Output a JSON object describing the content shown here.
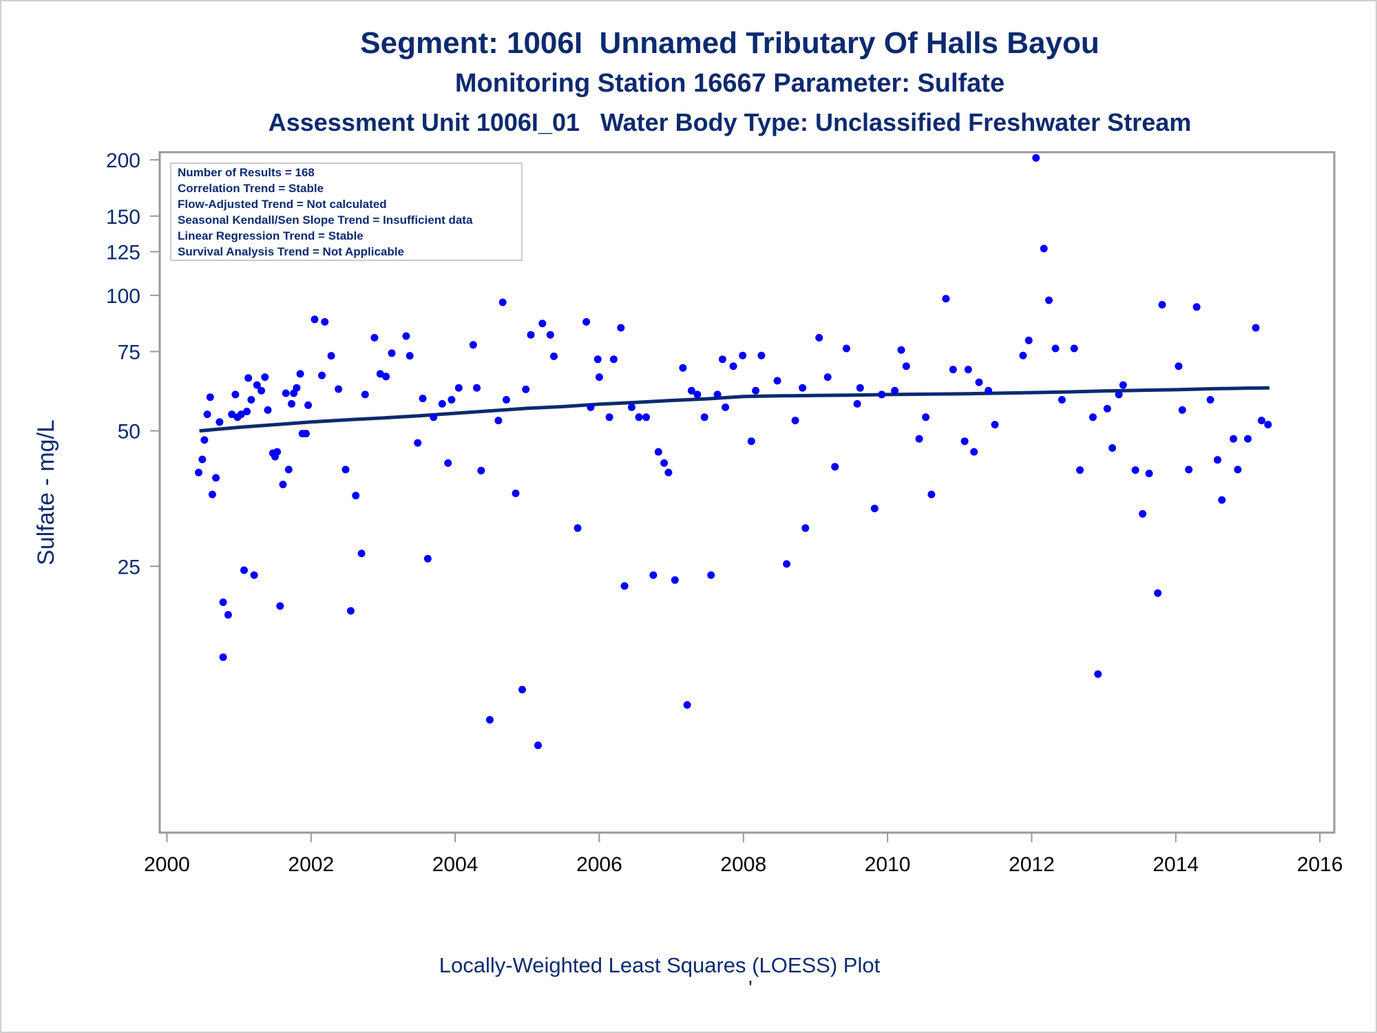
{
  "titles": {
    "line1": "Segment: 1006I  Unnamed Tributary Of Halls Bayou",
    "line2": "Monitoring Station 16667 Parameter: Sulfate",
    "line3": "Assessment Unit 1006I_01   Water Body Type: Unclassified Freshwater Stream"
  },
  "info_box": [
    "Number of Results = 168",
    "Correlation Trend = Stable",
    "Flow-Adjusted Trend = Not calculated",
    "Seasonal Kendall/Sen Slope Trend = Insufficient data",
    "Linear Regression Trend = Stable",
    "Survival Analysis Trend = Not Applicable"
  ],
  "caption": "Locally-Weighted Least Squares (LOESS) Plot",
  "caption_mark": "'",
  "colors": {
    "text": "#0b2a6f",
    "points": "#0000ff",
    "trend_line": "#0b2a6f",
    "frame": "#999999"
  },
  "chart_data": {
    "type": "scatter",
    "ylabel": "Sulfate - mg/L",
    "xlabel": "",
    "x_ticks": [
      2000,
      2002,
      2004,
      2006,
      2008,
      2010,
      2012,
      2014,
      2016
    ],
    "y_ticks": [
      25,
      50,
      75,
      100,
      125,
      150,
      200
    ],
    "y_scale": "log",
    "xlim": [
      1999.9,
      2016.2
    ],
    "ylim": [
      6.4,
      208
    ],
    "grid": false,
    "series": [
      {
        "type": "scatter",
        "points": [
          [
            2000.44,
            40.4
          ],
          [
            2000.49,
            43.2
          ],
          [
            2000.52,
            47.7
          ],
          [
            2000.56,
            54.4
          ],
          [
            2000.6,
            59.4
          ],
          [
            2000.63,
            36.1
          ],
          [
            2000.68,
            39.3
          ],
          [
            2000.73,
            52.3
          ],
          [
            2000.78,
            20.8
          ],
          [
            2000.78,
            15.7
          ],
          [
            2000.85,
            19.5
          ],
          [
            2000.9,
            54.4
          ],
          [
            2000.95,
            60.2
          ],
          [
            2000.98,
            53.6
          ],
          [
            2001.03,
            54.4
          ],
          [
            2001.07,
            24.5
          ],
          [
            2001.11,
            55.2
          ],
          [
            2001.13,
            65.5
          ],
          [
            2001.17,
            58.6
          ],
          [
            2001.21,
            23.9
          ],
          [
            2001.25,
            63.2
          ],
          [
            2001.31,
            61.4
          ],
          [
            2001.36,
            65.8
          ],
          [
            2001.4,
            55.6
          ],
          [
            2001.47,
            44.6
          ],
          [
            2001.5,
            43.8
          ],
          [
            2001.53,
            44.9
          ],
          [
            2001.57,
            20.4
          ],
          [
            2001.61,
            38.0
          ],
          [
            2001.65,
            60.6
          ],
          [
            2001.69,
            41.0
          ],
          [
            2001.73,
            57.4
          ],
          [
            2001.76,
            60.6
          ],
          [
            2001.8,
            62.3
          ],
          [
            2001.85,
            66.9
          ],
          [
            2001.88,
            49.3
          ],
          [
            2001.93,
            49.3
          ],
          [
            2001.96,
            57.0
          ],
          [
            2002.05,
            88.4
          ],
          [
            2002.15,
            66.4
          ],
          [
            2002.19,
            87.3
          ],
          [
            2002.28,
            73.4
          ],
          [
            2002.38,
            61.9
          ],
          [
            2002.48,
            41.0
          ],
          [
            2002.55,
            19.9
          ],
          [
            2002.62,
            35.9
          ],
          [
            2002.7,
            26.7
          ],
          [
            2002.75,
            60.2
          ],
          [
            2002.88,
            80.5
          ],
          [
            2002.96,
            66.9
          ],
          [
            2003.04,
            66.0
          ],
          [
            2003.12,
            74.4
          ],
          [
            2003.32,
            81.2
          ],
          [
            2003.37,
            73.4
          ],
          [
            2003.48,
            47.0
          ],
          [
            2003.55,
            59.0
          ],
          [
            2003.62,
            26.0
          ],
          [
            2003.7,
            53.6
          ],
          [
            2003.82,
            57.4
          ],
          [
            2003.9,
            42.4
          ],
          [
            2003.95,
            58.6
          ],
          [
            2004.05,
            62.3
          ],
          [
            2004.25,
            77.6
          ],
          [
            2004.3,
            62.3
          ],
          [
            2004.36,
            40.8
          ],
          [
            2004.48,
            11.4
          ],
          [
            2004.6,
            52.7
          ],
          [
            2004.66,
            96.5
          ],
          [
            2004.71,
            58.6
          ],
          [
            2004.84,
            36.3
          ],
          [
            2004.93,
            13.3
          ],
          [
            2004.98,
            61.8
          ],
          [
            2005.05,
            81.7
          ],
          [
            2005.15,
            10.0
          ],
          [
            2005.21,
            86.6
          ],
          [
            2005.32,
            81.7
          ],
          [
            2005.37,
            73.2
          ],
          [
            2005.7,
            30.4
          ],
          [
            2005.82,
            87.3
          ],
          [
            2005.88,
            56.4
          ],
          [
            2005.98,
            72.1
          ],
          [
            2006.0,
            65.8
          ],
          [
            2006.14,
            53.6
          ],
          [
            2006.2,
            72.1
          ],
          [
            2006.3,
            84.7
          ],
          [
            2006.35,
            22.6
          ],
          [
            2006.45,
            56.4
          ],
          [
            2006.55,
            53.6
          ],
          [
            2006.65,
            53.6
          ],
          [
            2006.75,
            23.9
          ],
          [
            2006.82,
            44.9
          ],
          [
            2006.9,
            42.4
          ],
          [
            2006.96,
            40.4
          ],
          [
            2007.05,
            23.3
          ],
          [
            2007.16,
            69.0
          ],
          [
            2007.22,
            12.3
          ],
          [
            2007.28,
            61.4
          ],
          [
            2007.36,
            60.2
          ],
          [
            2007.46,
            53.6
          ],
          [
            2007.55,
            23.9
          ],
          [
            2007.64,
            60.2
          ],
          [
            2007.71,
            72.1
          ],
          [
            2007.75,
            56.4
          ],
          [
            2007.86,
            69.6
          ],
          [
            2007.99,
            73.5
          ],
          [
            2008.11,
            47.4
          ],
          [
            2008.17,
            61.4
          ],
          [
            2008.25,
            73.5
          ],
          [
            2008.47,
            64.6
          ],
          [
            2008.6,
            25.3
          ],
          [
            2008.72,
            52.7
          ],
          [
            2008.82,
            62.3
          ],
          [
            2008.86,
            30.4
          ],
          [
            2009.05,
            80.5
          ],
          [
            2009.17,
            65.8
          ],
          [
            2009.27,
            41.6
          ],
          [
            2009.43,
            76.2
          ],
          [
            2009.58,
            57.4
          ],
          [
            2009.62,
            62.3
          ],
          [
            2009.82,
            33.6
          ],
          [
            2009.92,
            60.2
          ],
          [
            2010.1,
            61.4
          ],
          [
            2010.19,
            75.6
          ],
          [
            2010.26,
            69.6
          ],
          [
            2010.44,
            48.0
          ],
          [
            2010.53,
            53.6
          ],
          [
            2010.61,
            36.1
          ],
          [
            2010.81,
            98.3
          ],
          [
            2010.91,
            68.4
          ],
          [
            2011.07,
            47.4
          ],
          [
            2011.12,
            68.4
          ],
          [
            2011.2,
            44.9
          ],
          [
            2011.27,
            64.1
          ],
          [
            2011.4,
            61.4
          ],
          [
            2011.49,
            51.6
          ],
          [
            2011.88,
            73.5
          ],
          [
            2011.96,
            79.4
          ],
          [
            2012.06,
            202.0
          ],
          [
            2012.17,
            127.0
          ],
          [
            2012.24,
            97.5
          ],
          [
            2012.33,
            76.2
          ],
          [
            2012.42,
            58.6
          ],
          [
            2012.59,
            76.2
          ],
          [
            2012.67,
            40.9
          ],
          [
            2012.85,
            53.6
          ],
          [
            2012.92,
            14.4
          ],
          [
            2013.05,
            56.0
          ],
          [
            2013.12,
            45.8
          ],
          [
            2013.21,
            60.2
          ],
          [
            2013.27,
            63.2
          ],
          [
            2013.44,
            40.9
          ],
          [
            2013.54,
            32.7
          ],
          [
            2013.63,
            40.2
          ],
          [
            2013.75,
            21.8
          ],
          [
            2013.81,
            95.3
          ],
          [
            2014.04,
            69.6
          ],
          [
            2014.09,
            55.6
          ],
          [
            2014.18,
            41.0
          ],
          [
            2014.29,
            94.2
          ],
          [
            2014.48,
            58.6
          ],
          [
            2014.58,
            43.1
          ],
          [
            2014.64,
            35.1
          ],
          [
            2014.8,
            48.0
          ],
          [
            2014.86,
            41.0
          ],
          [
            2015.0,
            48.0
          ],
          [
            2015.11,
            84.7
          ],
          [
            2015.19,
            52.7
          ],
          [
            2015.28,
            51.6
          ]
        ]
      },
      {
        "type": "line",
        "points": [
          [
            2000.45,
            50.0
          ],
          [
            2001.0,
            50.9
          ],
          [
            2001.5,
            51.6
          ],
          [
            2002.0,
            52.3
          ],
          [
            2002.5,
            52.9
          ],
          [
            2003.0,
            53.4
          ],
          [
            2003.5,
            54.0
          ],
          [
            2004.0,
            54.7
          ],
          [
            2004.5,
            55.4
          ],
          [
            2005.0,
            56.1
          ],
          [
            2005.5,
            56.6
          ],
          [
            2006.0,
            57.3
          ],
          [
            2006.5,
            57.8
          ],
          [
            2007.0,
            58.4
          ],
          [
            2007.5,
            58.9
          ],
          [
            2008.0,
            59.6
          ],
          [
            2008.5,
            59.8
          ],
          [
            2009.0,
            59.9
          ],
          [
            2009.5,
            60.0
          ],
          [
            2010.0,
            60.2
          ],
          [
            2010.5,
            60.3
          ],
          [
            2011.0,
            60.4
          ],
          [
            2011.5,
            60.6
          ],
          [
            2012.0,
            60.8
          ],
          [
            2012.5,
            61.0
          ],
          [
            2013.0,
            61.3
          ],
          [
            2013.5,
            61.5
          ],
          [
            2014.0,
            61.7
          ],
          [
            2014.5,
            62.0
          ],
          [
            2015.0,
            62.2
          ],
          [
            2015.3,
            62.3
          ]
        ]
      }
    ]
  }
}
